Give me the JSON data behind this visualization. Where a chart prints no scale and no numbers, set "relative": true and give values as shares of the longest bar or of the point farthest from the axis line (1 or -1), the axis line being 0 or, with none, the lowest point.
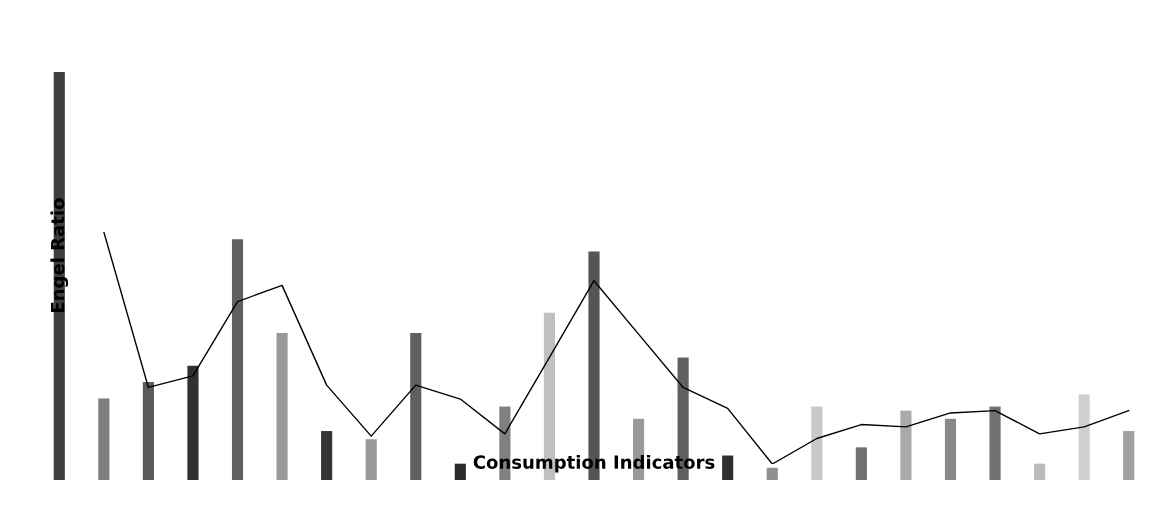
{
  "chart_data": [
    {
      "type": "bar",
      "relative": true,
      "ylabel": "Engel Ratio",
      "xlabel": "Consumption Indicators",
      "categories": [
        null,
        null,
        null,
        null,
        null,
        null,
        null,
        null,
        null,
        null,
        null,
        null,
        null,
        null,
        null,
        null,
        null,
        null,
        null,
        null,
        null,
        null,
        null,
        null,
        null
      ],
      "colors": [
        "#404040",
        "#808080",
        "#5a5a5a",
        "#303030",
        "#606060",
        "#999999",
        "#353535",
        "#999999",
        "#606060",
        "#2a2a2a",
        "#808080",
        "#c0c0c0",
        "#555555",
        "#999999",
        "#606060",
        "#303030",
        "#909090",
        "#c8c8c8",
        "#707070",
        "#aaaaaa",
        "#888888",
        "#707070",
        "#bbbbbb",
        "#d0d0d0",
        "#a0a0a0"
      ],
      "values": [
        1.0,
        0.2,
        0.24,
        0.28,
        0.59,
        0.36,
        0.12,
        0.1,
        0.36,
        0.04,
        0.18,
        0.41,
        0.56,
        0.15,
        0.3,
        0.06,
        0.03,
        0.18,
        0.08,
        0.17,
        0.15,
        0.18,
        0.04,
        0.21,
        0.12
      ]
    },
    {
      "type": "line",
      "relative": true,
      "color": "#000000",
      "categories": [
        null,
        null,
        null,
        null,
        null,
        null,
        null,
        null,
        null,
        null,
        null,
        null,
        null,
        null,
        null,
        null,
        null,
        null,
        null,
        null,
        null,
        null,
        null,
        null
      ],
      "values": [
        1.0,
        0.33,
        0.38,
        0.7,
        0.77,
        0.34,
        0.12,
        0.34,
        0.28,
        0.13,
        0.46,
        0.79,
        0.56,
        0.33,
        0.24,
        0.0,
        0.11,
        0.17,
        0.16,
        0.22,
        0.23,
        0.13,
        0.16,
        0.23
      ]
    }
  ]
}
